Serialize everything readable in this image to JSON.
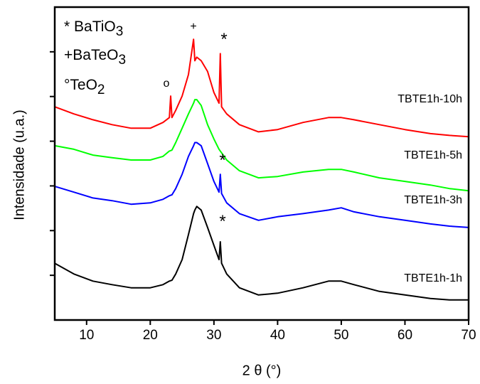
{
  "chart_data": {
    "type": "line",
    "x_label": "2 θ (°)",
    "y_label": "Intensidade (u.a.)",
    "xlim": [
      5,
      70
    ],
    "xticks": [
      10,
      20,
      30,
      40,
      50,
      60,
      70
    ],
    "ylim": [
      0,
      7
    ],
    "yticks": [
      1,
      2,
      3,
      4,
      5,
      6
    ],
    "annotations": [
      {
        "text": "* BaTiO",
        "sub": "3"
      },
      {
        "text": "+BaTeO",
        "sub": "3"
      },
      {
        "text": "°TeO",
        "sub": "2"
      },
      {
        "text": "+"
      },
      {
        "text": "*"
      },
      {
        "text": "o"
      },
      {
        "text": "*"
      },
      {
        "text": "*"
      }
    ],
    "x": [
      5,
      8,
      11,
      14,
      17,
      20,
      22,
      23,
      23.2,
      23.4,
      24,
      25,
      26,
      26.8,
      27,
      27.3,
      28,
      29,
      30,
      30.8,
      31,
      31.2,
      32,
      34,
      37,
      40,
      44,
      48,
      50,
      52,
      56,
      60,
      64,
      67,
      70
    ],
    "series": [
      {
        "name": "TBTE1h-10h",
        "color": "#ff0000",
        "values": [
          4.77,
          4.61,
          4.48,
          4.37,
          4.29,
          4.29,
          4.42,
          4.53,
          5.01,
          4.53,
          4.69,
          5.01,
          5.49,
          6.28,
          5.8,
          5.88,
          5.8,
          5.56,
          5.09,
          4.85,
          5.96,
          4.77,
          4.61,
          4.37,
          4.21,
          4.26,
          4.42,
          4.53,
          4.53,
          4.48,
          4.37,
          4.26,
          4.17,
          4.13,
          4.1
        ]
      },
      {
        "name": "TBTE1h-5h",
        "color": "#00ff00",
        "values": [
          3.9,
          3.82,
          3.69,
          3.63,
          3.58,
          3.58,
          3.66,
          3.78,
          3.79,
          3.8,
          3.97,
          4.29,
          4.61,
          4.85,
          4.93,
          4.93,
          4.8,
          4.37,
          4.05,
          3.82,
          3.78,
          3.74,
          3.58,
          3.34,
          3.18,
          3.21,
          3.31,
          3.37,
          3.37,
          3.31,
          3.18,
          3.1,
          3.02,
          2.94,
          2.89
        ]
      },
      {
        "name": "TBTE1h-3h",
        "color": "#0000ff",
        "values": [
          2.99,
          2.86,
          2.73,
          2.67,
          2.59,
          2.62,
          2.7,
          2.78,
          2.79,
          2.8,
          2.94,
          3.26,
          3.66,
          3.9,
          3.97,
          3.97,
          3.9,
          3.5,
          3.1,
          2.86,
          3.26,
          2.83,
          2.62,
          2.38,
          2.23,
          2.31,
          2.38,
          2.46,
          2.51,
          2.42,
          2.31,
          2.23,
          2.15,
          2.1,
          2.07
        ]
      },
      {
        "name": "TBTE1h-1h",
        "color": "#000000",
        "values": [
          1.27,
          1.03,
          0.87,
          0.79,
          0.72,
          0.72,
          0.79,
          0.87,
          0.88,
          0.89,
          1.03,
          1.35,
          1.91,
          2.38,
          2.46,
          2.54,
          2.46,
          2.07,
          1.67,
          1.35,
          1.75,
          1.27,
          1.03,
          0.72,
          0.56,
          0.6,
          0.72,
          0.87,
          0.87,
          0.79,
          0.64,
          0.56,
          0.48,
          0.45,
          0.45
        ]
      }
    ]
  }
}
